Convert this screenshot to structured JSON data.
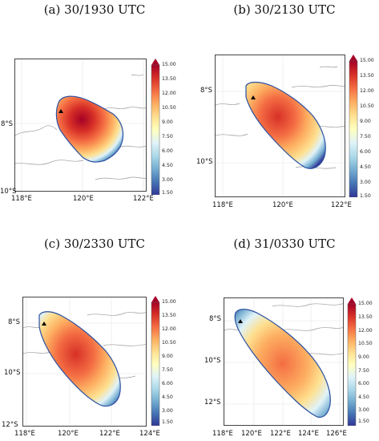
{
  "colors": {
    "scale": [
      "#313695",
      "#4575b4",
      "#74add1",
      "#abd9e9",
      "#e0f3f8",
      "#ffffbf",
      "#fee090",
      "#fdae61",
      "#f46d43",
      "#d73027",
      "#a50026"
    ],
    "coast": "#9a9a9a",
    "marker": "#000000"
  },
  "colorbar": {
    "ticks": [
      "15.00",
      "13.50",
      "12.00",
      "10.50",
      "9.00",
      "7.50",
      "6.00",
      "4.50",
      "3.00",
      "1.50"
    ],
    "min": 1.5,
    "max": 15.0
  },
  "panels": [
    {
      "title": "(a) 30/1930 UTC",
      "x_ticks": [
        "118°E",
        "120°E",
        "122°E"
      ],
      "y_ticks": [
        "8°S",
        "10°S"
      ]
    },
    {
      "title": "(b) 30/2130 UTC",
      "x_ticks": [
        "118°E",
        "120°E",
        "122°E"
      ],
      "y_ticks": [
        "8°S",
        "10°S"
      ]
    },
    {
      "title": "(c) 30/2330 UTC",
      "x_ticks": [
        "118°E",
        "120°E",
        "122°E",
        "124°E"
      ],
      "y_ticks": [
        "8°S",
        "10°S",
        "12°S"
      ]
    },
    {
      "title": "(d) 31/0330 UTC",
      "x_ticks": [
        "118°E",
        "120°E",
        "122°E",
        "124°E",
        "126°E"
      ],
      "y_ticks": [
        "8°S",
        "10°S",
        "12°S"
      ]
    }
  ]
}
